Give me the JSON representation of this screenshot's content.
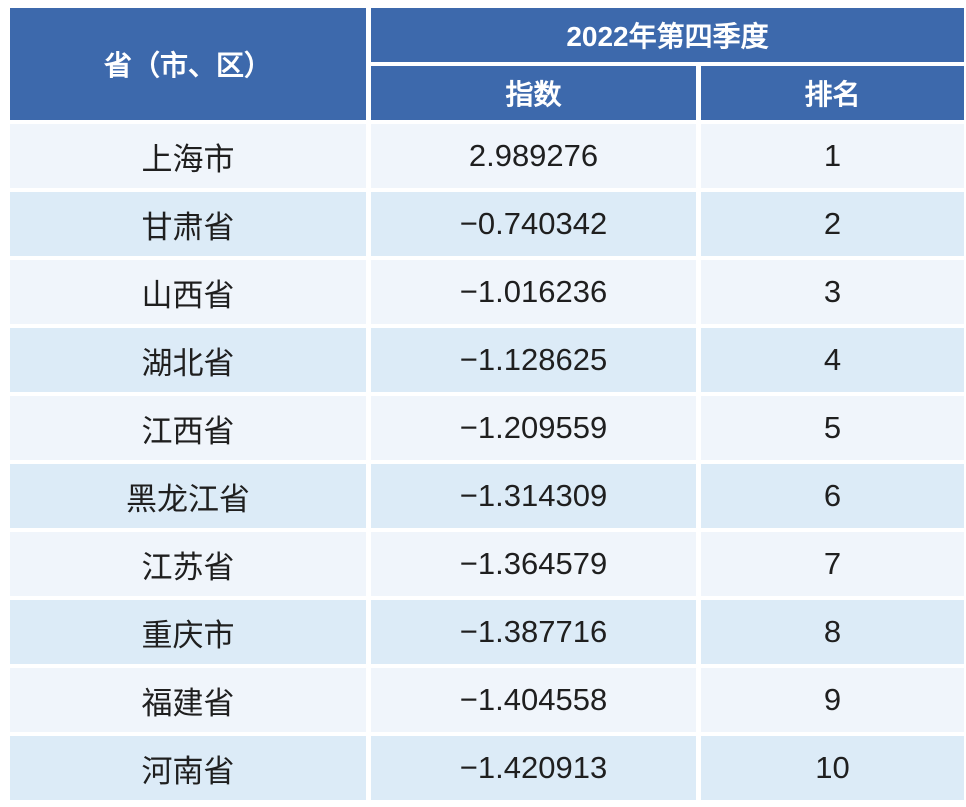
{
  "colors": {
    "header_bg": "#3d69ac",
    "header_text": "#ffffff",
    "row_light_bg": "#f0f5fb",
    "row_shaded_bg": "#dcebf7",
    "data_text": "#1f1f1f"
  },
  "table": {
    "province_header": "省（市、区）",
    "quarter_header": "2022年第四季度",
    "index_header": "指数",
    "rank_header": "排名",
    "rows": [
      {
        "province": "上海市",
        "index": "2.989276",
        "rank": "1"
      },
      {
        "province": "甘肃省",
        "index": "−0.740342",
        "rank": "2"
      },
      {
        "province": "山西省",
        "index": "−1.016236",
        "rank": "3"
      },
      {
        "province": "湖北省",
        "index": "−1.128625",
        "rank": "4"
      },
      {
        "province": "江西省",
        "index": "−1.209559",
        "rank": "5"
      },
      {
        "province": "黑龙江省",
        "index": "−1.314309",
        "rank": "6"
      },
      {
        "province": "江苏省",
        "index": "−1.364579",
        "rank": "7"
      },
      {
        "province": "重庆市",
        "index": "−1.387716",
        "rank": "8"
      },
      {
        "province": "福建省",
        "index": "−1.404558",
        "rank": "9"
      },
      {
        "province": "河南省",
        "index": "−1.420913",
        "rank": "10"
      }
    ]
  },
  "chart_data": {
    "type": "table",
    "title": "2022年第四季度",
    "columns": [
      "省（市、区）",
      "指数",
      "排名"
    ],
    "rows": [
      [
        "上海市",
        2.989276,
        1
      ],
      [
        "甘肃省",
        -0.740342,
        2
      ],
      [
        "山西省",
        -1.016236,
        3
      ],
      [
        "湖北省",
        -1.128625,
        4
      ],
      [
        "江西省",
        -1.209559,
        5
      ],
      [
        "黑龙江省",
        -1.314309,
        6
      ],
      [
        "江苏省",
        -1.364579,
        7
      ],
      [
        "重庆市",
        -1.387716,
        8
      ],
      [
        "福建省",
        -1.404558,
        9
      ],
      [
        "河南省",
        -1.420913,
        10
      ]
    ]
  }
}
